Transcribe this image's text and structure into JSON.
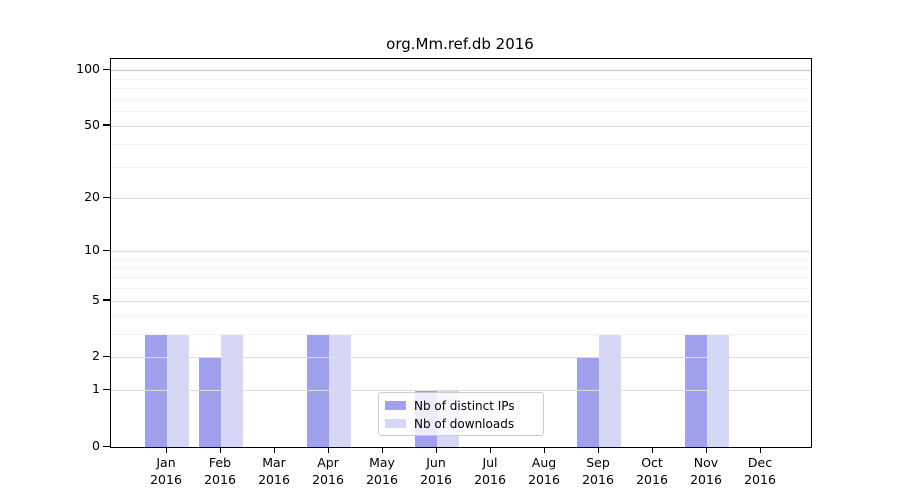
{
  "chart_data": {
    "type": "bar",
    "title": "org.Mm.ref.db 2016",
    "year": "2016",
    "categories": [
      "Jan",
      "Feb",
      "Mar",
      "Apr",
      "May",
      "Jun",
      "Jul",
      "Aug",
      "Sep",
      "Oct",
      "Nov",
      "Dec"
    ],
    "series": [
      {
        "name": "Nb of distinct IPs",
        "color": "#a0a0ee",
        "values": [
          3,
          2,
          0,
          3,
          0,
          1,
          0,
          0,
          2,
          0,
          3,
          0
        ]
      },
      {
        "name": "Nb of downloads",
        "color": "#d6d6f6",
        "values": [
          3,
          3,
          0,
          3,
          0,
          1,
          0,
          0,
          3,
          0,
          3,
          0
        ]
      }
    ],
    "y_axis": {
      "scale": "log1p",
      "ticks": [
        0,
        1,
        2,
        5,
        10,
        20,
        50,
        100
      ],
      "minor_ticks": [
        3,
        4,
        6,
        7,
        8,
        9,
        30,
        40,
        60,
        70,
        80,
        90
      ],
      "range": [
        0,
        115
      ]
    },
    "x_axis": {
      "label_line2": "2016"
    },
    "legend": {
      "position": "inside-bottom-center",
      "entries": [
        "Nb of distinct IPs",
        "Nb of downloads"
      ]
    },
    "grid": true,
    "colors": {
      "background": "#ffffff",
      "axis": "#000000",
      "major_grid": "#dcdcdc",
      "top_grid": "#c0c0c0",
      "minor_grid": "#f2f2f2"
    }
  }
}
